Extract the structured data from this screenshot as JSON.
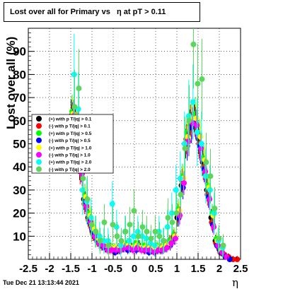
{
  "chart_data": {
    "type": "scatter",
    "title": "Lost over all for Primary vs   η at pT > 0.11",
    "xlabel": "η",
    "ylabel": "Lost over all (%)",
    "xlim": [
      -2.5,
      2.5
    ],
    "ylim": [
      0,
      100
    ],
    "x_ticks": [
      "-2.5",
      "-2",
      "-1.5",
      "-1",
      "-0.5",
      "0",
      "0.5",
      "1",
      "1.5",
      "2",
      "2.5"
    ],
    "y_ticks": [
      "10",
      "20",
      "30",
      "40",
      "50",
      "60",
      "70",
      "80",
      "90"
    ],
    "grid": true,
    "legend_position": "middle-left",
    "series": [
      {
        "name": "(+) with p T/|q| > 0.1",
        "color": "#000000",
        "x": [
          -1.45,
          -1.35,
          -1.25,
          -1.15,
          -1.05,
          -0.95,
          -0.85,
          -0.75,
          -0.65,
          -0.55,
          -0.45,
          -0.35,
          -0.25,
          -0.15,
          -0.05,
          0.05,
          0.15,
          0.25,
          0.35,
          0.45,
          0.55,
          0.65,
          0.75,
          0.85,
          0.95,
          1.05,
          1.15,
          1.25,
          1.35,
          1.45,
          1.55,
          1.65,
          1.75,
          1.85,
          1.95,
          2.05,
          2.15,
          2.25
        ],
        "y": [
          62,
          58,
          40,
          26,
          18,
          12,
          9,
          7,
          5,
          5,
          4,
          4,
          5,
          6,
          5,
          5,
          6,
          5,
          4,
          4,
          5,
          4,
          5,
          7,
          9,
          18,
          32,
          50,
          58,
          62,
          52,
          42,
          30,
          18,
          8,
          4,
          2,
          1
        ]
      },
      {
        "name": "(-) with p T/|q| > 0.1",
        "color": "#ff0000",
        "x": [
          -1.45,
          -1.35,
          -1.25,
          -1.15,
          -1.05,
          -0.95,
          -0.85,
          -0.75,
          -0.65,
          -0.55,
          -0.45,
          -0.35,
          -0.25,
          -0.15,
          -0.05,
          0.05,
          0.15,
          0.25,
          0.35,
          0.45,
          0.55,
          0.65,
          0.75,
          0.85,
          0.95,
          1.05,
          1.15,
          1.25,
          1.35,
          1.45,
          1.55,
          1.65,
          1.75,
          1.85,
          1.95,
          2.05,
          2.15,
          2.25,
          2.35,
          2.45
        ],
        "y": [
          60,
          57,
          38,
          24,
          17,
          11,
          8,
          6,
          5,
          4,
          4,
          5,
          5,
          5,
          6,
          5,
          5,
          4,
          5,
          4,
          5,
          5,
          6,
          8,
          10,
          20,
          34,
          52,
          60,
          60,
          50,
          40,
          28,
          16,
          7,
          3,
          2,
          1,
          0,
          0
        ]
      },
      {
        "name": "(+) with p T/|q| > 0.5",
        "color": "#00ff00",
        "x": [
          -1.45,
          -1.35,
          -1.25,
          -1.15,
          -1.05,
          -0.95,
          -0.85,
          -0.75,
          -0.65,
          -0.55,
          -0.45,
          -0.35,
          -0.25,
          -0.15,
          -0.05,
          0.05,
          0.15,
          0.25,
          0.35,
          0.45,
          0.55,
          0.65,
          0.75,
          0.85,
          0.95,
          1.05,
          1.15,
          1.25,
          1.35,
          1.45,
          1.55,
          1.65,
          1.75,
          1.85,
          1.95,
          2.05
        ],
        "y": [
          64,
          60,
          42,
          28,
          20,
          14,
          10,
          8,
          6,
          6,
          5,
          4,
          6,
          7,
          6,
          7,
          6,
          6,
          5,
          5,
          6,
          5,
          6,
          8,
          11,
          22,
          36,
          55,
          62,
          63,
          54,
          44,
          32,
          20,
          9,
          4
        ]
      },
      {
        "name": "(-) with p T/|q| > 0.5",
        "color": "#0000ff",
        "x": [
          -1.45,
          -1.35,
          -1.25,
          -1.15,
          -1.05,
          -0.95,
          -0.85,
          -0.75,
          -0.65,
          -0.55,
          -0.45,
          -0.35,
          -0.25,
          -0.15,
          -0.05,
          0.05,
          0.15,
          0.25,
          0.35,
          0.45,
          0.55,
          0.65,
          0.75,
          0.85,
          0.95,
          1.05,
          1.15,
          1.25,
          1.35,
          1.45,
          1.55,
          1.65,
          1.75,
          1.85,
          1.95,
          2.05,
          2.15,
          2.25
        ],
        "y": [
          61,
          56,
          39,
          25,
          16,
          11,
          8,
          6,
          5,
          5,
          3,
          4,
          5,
          4,
          5,
          4,
          5,
          4,
          3,
          4,
          4,
          4,
          5,
          6,
          9,
          18,
          31,
          49,
          57,
          59,
          49,
          39,
          27,
          15,
          6,
          3,
          1,
          0
        ]
      },
      {
        "name": "(+) with p T/|q| > 1.0",
        "color": "#ffff00",
        "x": [
          -1.45,
          -1.35,
          -1.25,
          -1.15,
          -1.05,
          -0.95,
          -0.85,
          -0.75,
          -0.65,
          -0.55,
          -0.45,
          -0.35,
          -0.25,
          -0.15,
          -0.05,
          0.05,
          0.15,
          0.25,
          0.35,
          0.45,
          0.55,
          0.65,
          0.75,
          0.85,
          0.95,
          1.05,
          1.15,
          1.25,
          1.35,
          1.45,
          1.55,
          1.65,
          1.75,
          1.85,
          1.95,
          2.05
        ],
        "y": [
          63,
          59,
          41,
          27,
          19,
          13,
          9,
          7,
          6,
          5,
          5,
          5,
          6,
          6,
          5,
          6,
          5,
          5,
          5,
          5,
          5,
          5,
          6,
          7,
          10,
          21,
          35,
          53,
          61,
          61,
          53,
          43,
          31,
          19,
          8,
          4
        ]
      },
      {
        "name": "(-) with p T/|q| > 1.0",
        "color": "#ff00ff",
        "x": [
          -1.45,
          -1.35,
          -1.25,
          -1.15,
          -1.05,
          -0.95,
          -0.85,
          -0.75,
          -0.65,
          -0.55,
          -0.45,
          -0.35,
          -0.25,
          -0.15,
          -0.05,
          0.05,
          0.15,
          0.25,
          0.35,
          0.45,
          0.55,
          0.65,
          0.75,
          0.85,
          0.95,
          1.05,
          1.15,
          1.25,
          1.35,
          1.45,
          1.55,
          1.65,
          1.75,
          1.85,
          1.95,
          2.05,
          2.15
        ],
        "y": [
          62,
          57,
          37,
          23,
          16,
          10,
          7,
          6,
          4,
          4,
          4,
          4,
          5,
          5,
          4,
          5,
          4,
          4,
          4,
          3,
          4,
          4,
          5,
          7,
          9,
          19,
          33,
          51,
          59,
          58,
          48,
          38,
          26,
          14,
          6,
          3,
          1
        ]
      },
      {
        "name": "(+) with p T/|q| > 2.0",
        "color": "#00ffff",
        "x": [
          -1.45,
          -1.35,
          -1.25,
          -1.15,
          -1.05,
          -0.95,
          -0.85,
          -0.75,
          -0.65,
          -0.55,
          -0.45,
          -0.35,
          -0.25,
          -0.15,
          -0.05,
          0.05,
          0.15,
          0.25,
          0.35,
          0.45,
          0.55,
          0.65,
          0.75,
          0.85,
          0.95,
          1.05,
          1.15,
          1.25,
          1.35,
          1.45,
          1.55,
          1.65,
          1.75,
          1.85,
          1.95,
          2.05
        ],
        "y": [
          80,
          65,
          30,
          25,
          18,
          12,
          10,
          8,
          8,
          24,
          14,
          6,
          12,
          8,
          10,
          12,
          10,
          9,
          7,
          6,
          12,
          8,
          14,
          20,
          30,
          35,
          50,
          62,
          68,
          55,
          50,
          36,
          30,
          20,
          8,
          5
        ]
      },
      {
        "name": "(-) with p T/|q| > 2.0",
        "color": "#5cd65c",
        "x": [
          -1.45,
          -1.35,
          -1.25,
          -1.15,
          -1.05,
          -0.95,
          -0.85,
          -0.75,
          -0.65,
          -0.55,
          -0.45,
          -0.35,
          -0.25,
          -0.15,
          -0.05,
          0.05,
          0.15,
          0.25,
          0.35,
          0.45,
          0.55,
          0.65,
          0.75,
          0.85,
          0.95,
          1.05,
          1.15,
          1.25,
          1.35,
          1.45,
          1.55,
          1.65,
          1.75,
          1.85,
          1.95,
          2.05
        ],
        "y": [
          66,
          74,
          35,
          26,
          15,
          12,
          8,
          16,
          6,
          15,
          10,
          8,
          12,
          15,
          21,
          10,
          14,
          12,
          9,
          12,
          10,
          8,
          18,
          16,
          20,
          28,
          48,
          60,
          93,
          76,
          78,
          42,
          36,
          22,
          9,
          6
        ]
      }
    ]
  },
  "footer": {
    "date": "Tue Dec 21 13:13:44 2021"
  },
  "colors": {
    "frame": "#000000",
    "grid": "#000000",
    "background": "#ffffff"
  }
}
